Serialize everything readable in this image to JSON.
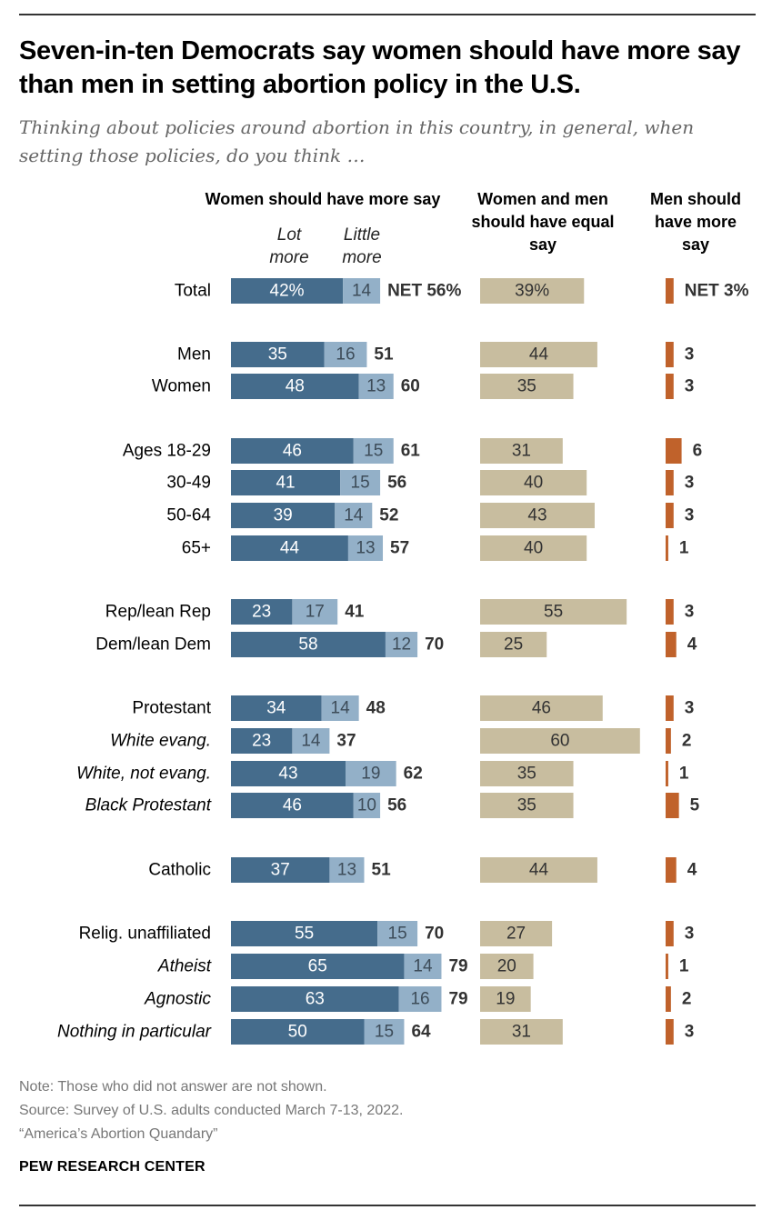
{
  "title": "Seven-in-ten Democrats say women should have more say than men in setting abortion policy in the U.S.",
  "subtitle": "Thinking about policies around abortion in this country, in general, when setting those policies, do you think …",
  "headers": {
    "women_more": "Women should have more say",
    "lot_more": "Lot more",
    "little_more": "Little more",
    "equal": "Women and men should have equal say",
    "men_more": "Men should have more say"
  },
  "chart_data": {
    "type": "bar",
    "orientation": "horizontal",
    "stacked": true,
    "series": [
      {
        "name": "Lot more",
        "group": "Women should have more say",
        "color": "#456c8c"
      },
      {
        "name": "Little more",
        "group": "Women should have more say",
        "color": "#93b0c8"
      },
      {
        "name": "Women and men should have equal say",
        "color": "#c8bd9f"
      },
      {
        "name": "Men should have more say",
        "color": "#c0622b"
      }
    ],
    "rows": [
      {
        "category": "Total",
        "italic": false,
        "lot": 42,
        "lot_label": "42%",
        "little": 14,
        "little_label": "14",
        "net": 56,
        "net_label": "NET 56%",
        "equal": 39,
        "equal_label": "39%",
        "men": 3,
        "men_label": "NET 3%"
      },
      {
        "category": "Men",
        "italic": false,
        "lot": 35,
        "lot_label": "35",
        "little": 16,
        "little_label": "16",
        "net": 51,
        "net_label": "51",
        "equal": 44,
        "equal_label": "44",
        "men": 3,
        "men_label": "3"
      },
      {
        "category": "Women",
        "italic": false,
        "lot": 48,
        "lot_label": "48",
        "little": 13,
        "little_label": "13",
        "net": 60,
        "net_label": "60",
        "equal": 35,
        "equal_label": "35",
        "men": 3,
        "men_label": "3"
      },
      {
        "category": "Ages 18-29",
        "italic": false,
        "lot": 46,
        "lot_label": "46",
        "little": 15,
        "little_label": "15",
        "net": 61,
        "net_label": "61",
        "equal": 31,
        "equal_label": "31",
        "men": 6,
        "men_label": "6"
      },
      {
        "category": "30-49",
        "italic": false,
        "lot": 41,
        "lot_label": "41",
        "little": 15,
        "little_label": "15",
        "net": 56,
        "net_label": "56",
        "equal": 40,
        "equal_label": "40",
        "men": 3,
        "men_label": "3"
      },
      {
        "category": "50-64",
        "italic": false,
        "lot": 39,
        "lot_label": "39",
        "little": 14,
        "little_label": "14",
        "net": 52,
        "net_label": "52",
        "equal": 43,
        "equal_label": "43",
        "men": 3,
        "men_label": "3"
      },
      {
        "category": "65+",
        "italic": false,
        "lot": 44,
        "lot_label": "44",
        "little": 13,
        "little_label": "13",
        "net": 57,
        "net_label": "57",
        "equal": 40,
        "equal_label": "40",
        "men": 1,
        "men_label": "1"
      },
      {
        "category": "Rep/lean Rep",
        "italic": false,
        "lot": 23,
        "lot_label": "23",
        "little": 17,
        "little_label": "17",
        "net": 41,
        "net_label": "41",
        "equal": 55,
        "equal_label": "55",
        "men": 3,
        "men_label": "3"
      },
      {
        "category": "Dem/lean Dem",
        "italic": false,
        "lot": 58,
        "lot_label": "58",
        "little": 12,
        "little_label": "12",
        "net": 70,
        "net_label": "70",
        "equal": 25,
        "equal_label": "25",
        "men": 4,
        "men_label": "4"
      },
      {
        "category": "Protestant",
        "italic": false,
        "lot": 34,
        "lot_label": "34",
        "little": 14,
        "little_label": "14",
        "net": 48,
        "net_label": "48",
        "equal": 46,
        "equal_label": "46",
        "men": 3,
        "men_label": "3"
      },
      {
        "category": "White evang.",
        "italic": true,
        "lot": 23,
        "lot_label": "23",
        "little": 14,
        "little_label": "14",
        "net": 37,
        "net_label": "37",
        "equal": 60,
        "equal_label": "60",
        "men": 2,
        "men_label": "2"
      },
      {
        "category": "White, not evang.",
        "italic": true,
        "lot": 43,
        "lot_label": "43",
        "little": 19,
        "little_label": "19",
        "net": 62,
        "net_label": "62",
        "equal": 35,
        "equal_label": "35",
        "men": 1,
        "men_label": "1"
      },
      {
        "category": "Black Protestant",
        "italic": true,
        "lot": 46,
        "lot_label": "46",
        "little": 10,
        "little_label": "10",
        "net": 56,
        "net_label": "56",
        "equal": 35,
        "equal_label": "35",
        "men": 5,
        "men_label": "5"
      },
      {
        "category": "Catholic",
        "italic": false,
        "lot": 37,
        "lot_label": "37",
        "little": 13,
        "little_label": "13",
        "net": 51,
        "net_label": "51",
        "equal": 44,
        "equal_label": "44",
        "men": 4,
        "men_label": "4"
      },
      {
        "category": "Relig. unaffiliated",
        "italic": false,
        "lot": 55,
        "lot_label": "55",
        "little": 15,
        "little_label": "15",
        "net": 70,
        "net_label": "70",
        "equal": 27,
        "equal_label": "27",
        "men": 3,
        "men_label": "3"
      },
      {
        "category": "Atheist",
        "italic": true,
        "lot": 65,
        "lot_label": "65",
        "little": 14,
        "little_label": "14",
        "net": 79,
        "net_label": "79",
        "equal": 20,
        "equal_label": "20",
        "men": 1,
        "men_label": "1"
      },
      {
        "category": "Agnostic",
        "italic": true,
        "lot": 63,
        "lot_label": "63",
        "little": 16,
        "little_label": "16",
        "net": 79,
        "net_label": "79",
        "equal": 19,
        "equal_label": "19",
        "men": 2,
        "men_label": "2"
      },
      {
        "category": "Nothing in particular",
        "italic": true,
        "lot": 50,
        "lot_label": "50",
        "little": 15,
        "little_label": "15",
        "net": 64,
        "net_label": "64",
        "equal": 31,
        "equal_label": "31",
        "men": 3,
        "men_label": "3"
      }
    ]
  },
  "notes": {
    "note": "Note: Those who did not answer are not shown.",
    "source": "Source: Survey of U.S. adults conducted March 7-13, 2022.",
    "report": "“America’s Abortion Quandary”"
  },
  "brand": "PEW RESEARCH CENTER"
}
